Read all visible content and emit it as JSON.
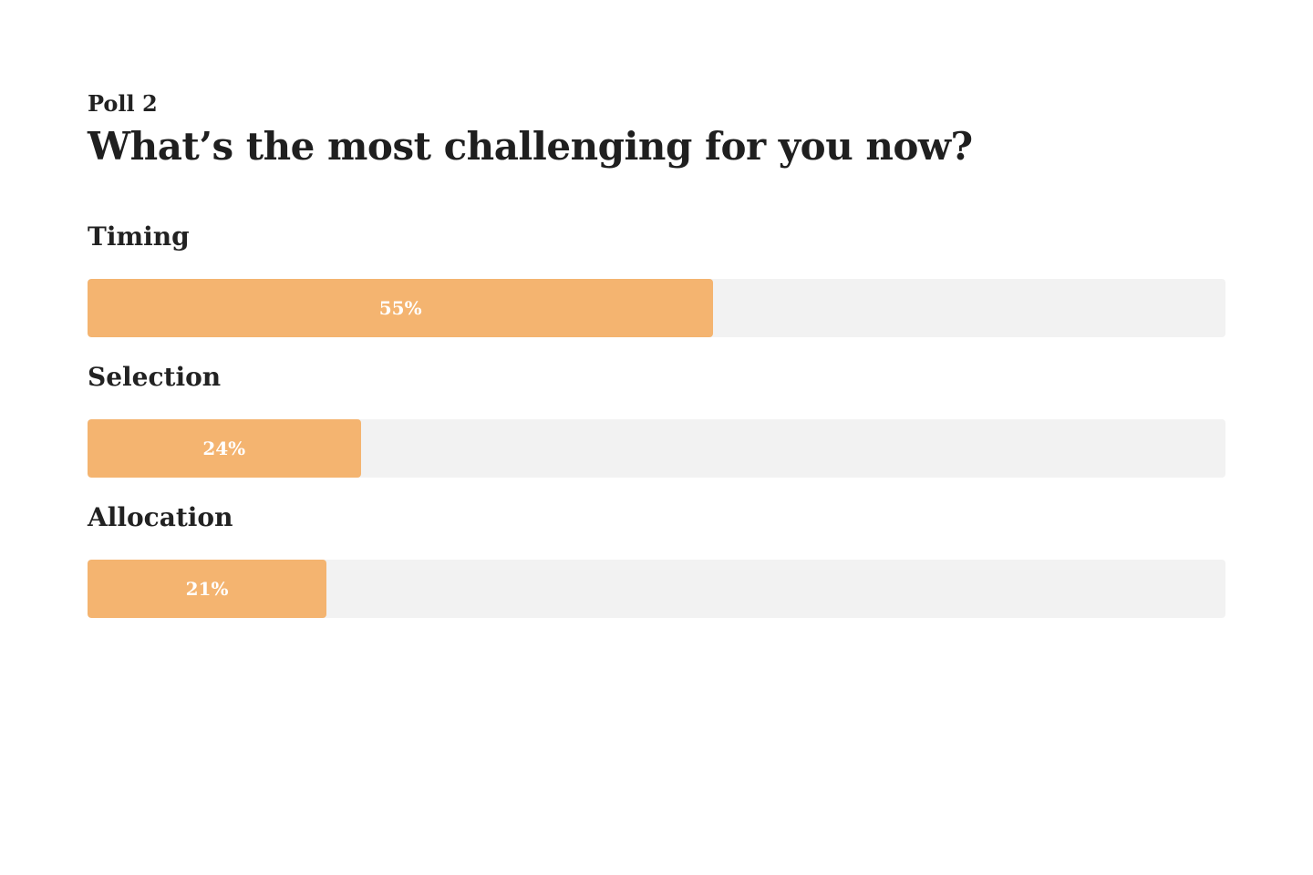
{
  "poll": {
    "label": "Poll 2",
    "question": "What’s the most challenging for you now?"
  },
  "colors": {
    "bar_fill": "#f4b470",
    "bar_track": "#f2f2f2",
    "text": "#1f1f1f",
    "value_text": "#ffffff"
  },
  "options": [
    {
      "label": "Timing",
      "percent": 55,
      "value_label": "55%"
    },
    {
      "label": "Selection",
      "percent": 24,
      "value_label": "24%"
    },
    {
      "label": "Allocation",
      "percent": 21,
      "value_label": "21%"
    }
  ]
}
